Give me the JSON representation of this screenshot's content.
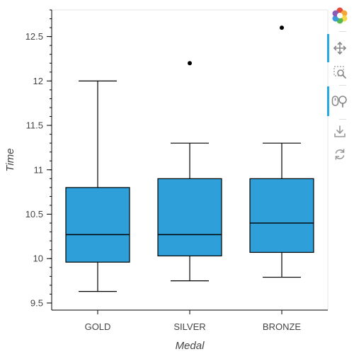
{
  "chart_data": {
    "type": "box",
    "title": "",
    "xlabel": "Medal",
    "ylabel": "Time",
    "ylim": [
      9.42,
      12.8
    ],
    "yticks": [
      9.5,
      10,
      10.5,
      11,
      11.5,
      12,
      12.5
    ],
    "ytick_labels": [
      "9.5",
      "10",
      "10.5",
      "11",
      "11.5",
      "12",
      "12.5"
    ],
    "categories": [
      "GOLD",
      "SILVER",
      "BRONZE"
    ],
    "box_color": "#2e9fd8",
    "series": [
      {
        "category": "GOLD",
        "whisker_low": 9.63,
        "q1": 9.96,
        "median": 10.27,
        "q3": 10.8,
        "whisker_high": 12.0,
        "outliers": []
      },
      {
        "category": "SILVER",
        "whisker_low": 9.75,
        "q1": 10.03,
        "median": 10.27,
        "q3": 10.9,
        "whisker_high": 11.3,
        "outliers": [
          12.2
        ]
      },
      {
        "category": "BRONZE",
        "whisker_low": 9.79,
        "q1": 10.07,
        "median": 10.4,
        "q3": 10.9,
        "whisker_high": 11.3,
        "outliers": [
          12.6
        ]
      }
    ],
    "grid": false,
    "legend": "none"
  },
  "toolbar": {
    "tools": [
      {
        "name": "bokeh-logo-icon",
        "active": false
      },
      {
        "name": "pan-icon",
        "active": true
      },
      {
        "name": "box-zoom-icon",
        "active": false
      },
      {
        "name": "wheel-zoom-icon",
        "active": true
      },
      {
        "name": "save-icon",
        "active": false
      },
      {
        "name": "reset-icon",
        "active": false
      }
    ]
  }
}
